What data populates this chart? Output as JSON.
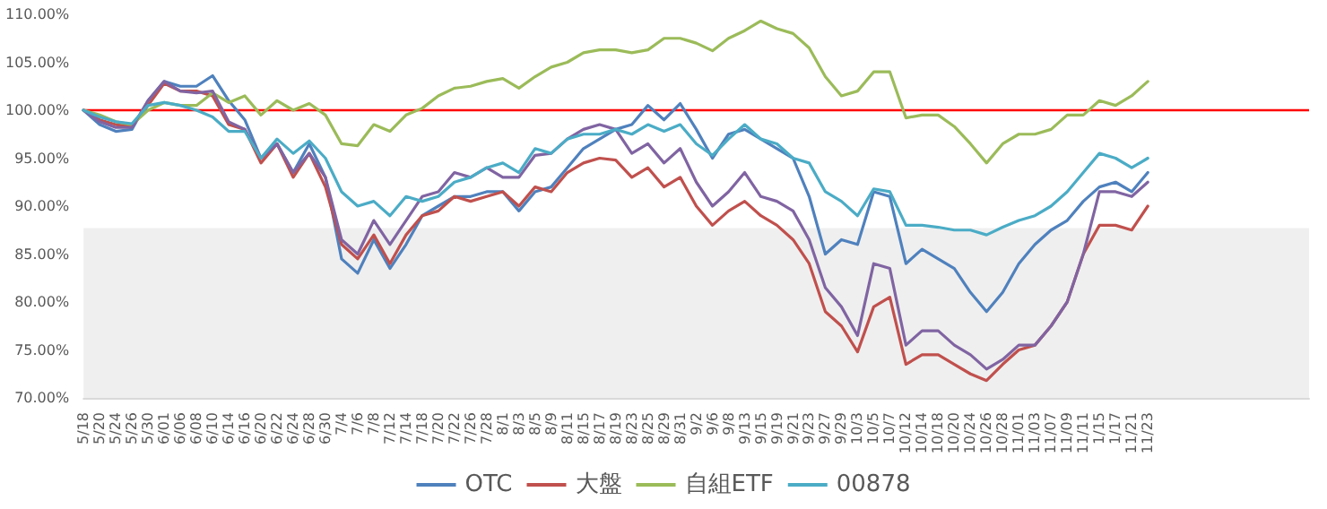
{
  "chart_data": {
    "type": "line",
    "categories": [
      "5/18",
      "5/20",
      "5/24",
      "5/26",
      "5/30",
      "6/01",
      "6/06",
      "6/08",
      "6/10",
      "6/14",
      "6/16",
      "6/20",
      "6/22",
      "6/24",
      "6/28",
      "6/30",
      "7/4",
      "7/6",
      "7/8",
      "7/12",
      "7/14",
      "7/18",
      "7/20",
      "7/22",
      "7/26",
      "7/28",
      "8/1",
      "8/3",
      "8/5",
      "8/9",
      "8/11",
      "8/15",
      "8/17",
      "8/19",
      "8/23",
      "8/25",
      "8/29",
      "8/31",
      "9/2",
      "9/6",
      "9/8",
      "9/13",
      "9/15",
      "9/19",
      "9/21",
      "9/23",
      "9/27",
      "9/29",
      "10/3",
      "10/5",
      "10/7",
      "10/12",
      "10/14",
      "10/18",
      "10/20",
      "10/24",
      "10/26",
      "10/28",
      "11/01",
      "11/03",
      "11/07",
      "11/09",
      "11/11",
      "1/15",
      "1/17",
      "11/21",
      "11/23",
      null,
      null,
      null,
      null,
      null,
      null,
      null,
      null,
      null,
      null
    ],
    "series": [
      {
        "name": "OTC",
        "color": "#4f81bd",
        "values": [
          100,
          98.5,
          97.8,
          98,
          101,
          103,
          102.5,
          102.5,
          103.6,
          101,
          99,
          95,
          96.5,
          93.5,
          96.5,
          93,
          84.5,
          83,
          86.5,
          83.5,
          86,
          89,
          90,
          91,
          91,
          91.5,
          91.5,
          89.5,
          91.5,
          92,
          94,
          96,
          97,
          98,
          98.5,
          100.5,
          99,
          100.7,
          98,
          95,
          97.5,
          98,
          97,
          96,
          95,
          91,
          85,
          86.5,
          86,
          91.5,
          91,
          84,
          85.5,
          84.5,
          83.5,
          81,
          79,
          81,
          84,
          86,
          87.5,
          88.5,
          90.5,
          92,
          92.5,
          91.5,
          93.5,
          null,
          null,
          null,
          null,
          null,
          null,
          null,
          null,
          null,
          null
        ]
      },
      {
        "name": "大盤",
        "color": "#c0504d",
        "values": [
          100,
          99,
          98.5,
          98.3,
          100.5,
          102.8,
          102,
          102,
          101.5,
          98.5,
          98,
          94.5,
          96.5,
          93,
          95.5,
          92,
          86,
          84.5,
          87,
          84,
          87,
          89,
          89.5,
          91,
          90.5,
          91,
          91.5,
          90,
          92,
          91.5,
          93.5,
          94.5,
          95,
          94.8,
          93,
          94,
          92,
          93,
          90,
          88,
          89.5,
          90.5,
          89,
          88,
          86.5,
          84,
          79,
          77.5,
          74.8,
          79.5,
          80.5,
          73.5,
          74.5,
          74.5,
          73.5,
          72.5,
          71.8,
          73.5,
          75,
          75.5,
          77.5,
          80,
          85,
          88,
          88,
          87.5,
          90,
          null,
          null,
          null,
          null,
          null,
          null,
          null,
          null,
          null,
          null
        ]
      },
      {
        "name": "自組ETF",
        "color": "#9bbb59",
        "values": [
          100,
          99.5,
          98.8,
          98.5,
          100,
          100.8,
          100.5,
          100.5,
          101.8,
          100.8,
          101.5,
          99.5,
          101,
          100,
          100.7,
          99.5,
          96.5,
          96.3,
          98.5,
          97.8,
          99.5,
          100.2,
          101.5,
          102.3,
          102.5,
          103,
          103.3,
          102.3,
          103.5,
          104.5,
          105,
          106,
          106.3,
          106.3,
          106,
          106.3,
          107.5,
          107.5,
          107,
          106.2,
          107.5,
          108.3,
          109.3,
          108.5,
          108,
          106.5,
          103.5,
          101.5,
          102,
          104,
          104,
          99.2,
          99.5,
          99.5,
          98.3,
          96.5,
          94.5,
          96.5,
          97.5,
          97.5,
          98,
          99.5,
          99.5,
          101,
          100.5,
          101.5,
          103,
          null,
          null,
          null,
          null,
          null,
          null,
          null,
          null,
          null,
          null
        ]
      },
      {
        "color": "#8064a2",
        "values": [
          100,
          98.8,
          98.2,
          98.2,
          101,
          103,
          102,
          101.8,
          102,
          98.8,
          98,
          95,
          96.5,
          93.5,
          95.5,
          93,
          86.5,
          85,
          88.5,
          86,
          88.5,
          91,
          91.5,
          93.5,
          93,
          94,
          93,
          93,
          95.3,
          95.5,
          97,
          98,
          98.5,
          98,
          95.5,
          96.5,
          94.5,
          96,
          92.5,
          90,
          91.5,
          93.5,
          91,
          90.5,
          89.5,
          86.5,
          81.5,
          79.5,
          76.5,
          84,
          83.5,
          75.5,
          77,
          77,
          75.5,
          74.5,
          73,
          74,
          75.5,
          75.5,
          77.5,
          80,
          85,
          91.5,
          91.5,
          91,
          92.5,
          null,
          null,
          null,
          null,
          null,
          null,
          null,
          null,
          null,
          null
        ]
      },
      {
        "name": "00878",
        "color": "#4bacc6",
        "values": [
          100,
          99.3,
          98.8,
          98.6,
          100.5,
          100.8,
          100.5,
          100,
          99.3,
          97.8,
          97.8,
          95,
          97,
          95.5,
          96.8,
          95,
          91.5,
          90,
          90.5,
          89,
          91,
          90.5,
          91,
          92.5,
          93,
          94,
          94.5,
          93.5,
          96,
          95.5,
          97,
          97.5,
          97.5,
          98,
          97.5,
          98.5,
          97.8,
          98.5,
          96.5,
          95.3,
          97,
          98.5,
          97,
          96.5,
          95,
          94.5,
          91.5,
          90.5,
          89,
          91.8,
          91.5,
          88,
          88,
          87.8,
          87.5,
          87.5,
          87,
          87.8,
          88.5,
          89,
          90,
          91.5,
          93.5,
          95.5,
          95,
          94,
          95,
          null,
          null,
          null,
          null,
          null,
          null,
          null,
          null,
          null,
          null
        ]
      }
    ],
    "ylim": [
      70,
      110
    ],
    "yticks": [
      {
        "value": 70,
        "label": "70.00%"
      },
      {
        "value": 75,
        "label": "75.00%"
      },
      {
        "value": 80,
        "label": "80.00%"
      },
      {
        "value": 85,
        "label": "85.00%"
      },
      {
        "value": 90,
        "label": "90.00%"
      },
      {
        "value": 95,
        "label": "95.00%"
      },
      {
        "value": 100,
        "label": "100.00%"
      },
      {
        "value": 105,
        "label": "105.00%"
      },
      {
        "value": 110,
        "label": "110.00%"
      }
    ],
    "ref_lines": [
      {
        "axis": "y",
        "value": 100,
        "color": "#ff0000"
      }
    ],
    "bands": [
      {
        "axis": "y",
        "from": 70,
        "to": 87.7,
        "color": "#efefef"
      }
    ],
    "legend": "bottom",
    "grid": false,
    "marker": "none"
  }
}
